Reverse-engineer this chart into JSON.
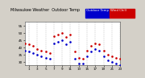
{
  "title": "Milwaukee Weather  Outdoor Temp",
  "legend_temp_label": "Outdoor Temp",
  "legend_wc_label": "Wind Chill",
  "bg_color": "#d4d0c8",
  "plot_bg": "#ffffff",
  "temp_color": "#cc0000",
  "wc_color": "#0000cc",
  "ylim": [
    28,
    58
  ],
  "xlim": [
    0,
    23
  ],
  "ytick_vals": [
    30,
    35,
    40,
    45,
    50,
    55
  ],
  "ytick_labels": [
    "30",
    "35",
    "40",
    "45",
    "50",
    "55"
  ],
  "xtick_vals": [
    1,
    3,
    5,
    7,
    9,
    11,
    13,
    15,
    17,
    19,
    21,
    23
  ],
  "xtick_labels": [
    "1",
    "3",
    "5",
    "7",
    "9",
    "11",
    "13",
    "15",
    "17",
    "19",
    "21",
    "23"
  ],
  "vgrid_positions": [
    1,
    3,
    5,
    7,
    9,
    11,
    13,
    15,
    17,
    19,
    21,
    23
  ],
  "temp_x": [
    0,
    1,
    2,
    3,
    4,
    5,
    6,
    7,
    8,
    9,
    10,
    11,
    12,
    13,
    14,
    15,
    16,
    17,
    18,
    19,
    20,
    21,
    22,
    23
  ],
  "temp_y": [
    43,
    42,
    41,
    39,
    38,
    37,
    36,
    48,
    49,
    50,
    47,
    49,
    37,
    33,
    32,
    38,
    41,
    43,
    42,
    38,
    35,
    34,
    33,
    32
  ],
  "wc_x": [
    0,
    1,
    2,
    3,
    4,
    5,
    6,
    7,
    8,
    9,
    10,
    11,
    12,
    13,
    14,
    15,
    16,
    17,
    18,
    19,
    20,
    21,
    22,
    23
  ],
  "wc_y": [
    38,
    37,
    36,
    35,
    34,
    33,
    32,
    43,
    44,
    45,
    42,
    44,
    32,
    29,
    29,
    34,
    37,
    39,
    38,
    34,
    31,
    30,
    29,
    28
  ],
  "marker_size": 1.8,
  "tick_fontsize": 3.0,
  "legend_color_blue": "#0000cc",
  "legend_color_red": "#cc0000",
  "title_fontsize": 3.5
}
